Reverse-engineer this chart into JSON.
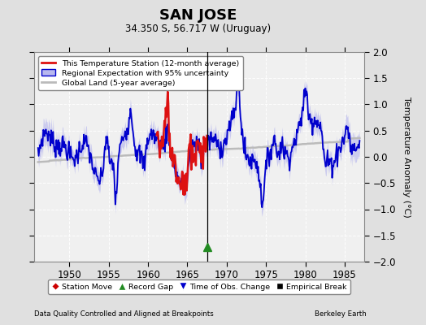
{
  "title": "SAN JOSE",
  "subtitle": "34.350 S, 56.717 W (Uruguay)",
  "ylabel": "Temperature Anomaly (°C)",
  "xlim": [
    1945.5,
    1987.5
  ],
  "ylim": [
    -2,
    2
  ],
  "yticks": [
    -2,
    -1.5,
    -1,
    -0.5,
    0,
    0.5,
    1,
    1.5,
    2
  ],
  "xticks": [
    1950,
    1955,
    1960,
    1965,
    1970,
    1975,
    1980,
    1985
  ],
  "background_color": "#e0e0e0",
  "plot_bg_color": "#f0f0f0",
  "grid_color": "#ffffff",
  "station_line_color": "#dd1111",
  "regional_line_color": "#0000cc",
  "regional_fill_color": "#b8b8ee",
  "global_line_color": "#bbbbbb",
  "vertical_line_x": 1967.58,
  "vertical_line_color": "#000000",
  "record_gap_x": 1967.58,
  "record_gap_y": -1.72,
  "footer_left": "Data Quality Controlled and Aligned at Breakpoints",
  "footer_right": "Berkeley Earth",
  "station_start": 1961.0,
  "station_end": 1967.58,
  "legend_items": [
    {
      "label": "This Temperature Station (12-month average)",
      "color": "#dd1111",
      "lw": 2
    },
    {
      "label": "Regional Expectation with 95% uncertainty",
      "color": "#0000cc",
      "lw": 2
    },
    {
      "label": "Global Land (5-year average)",
      "color": "#bbbbbb",
      "lw": 2
    }
  ],
  "marker_legend": [
    {
      "label": "Station Move",
      "marker": "D",
      "color": "#cc0000"
    },
    {
      "label": "Record Gap",
      "marker": "^",
      "color": "#228B22"
    },
    {
      "label": "Time of Obs. Change",
      "marker": "v",
      "color": "#0000cc"
    },
    {
      "label": "Empirical Break",
      "marker": "s",
      "color": "#000000"
    }
  ]
}
